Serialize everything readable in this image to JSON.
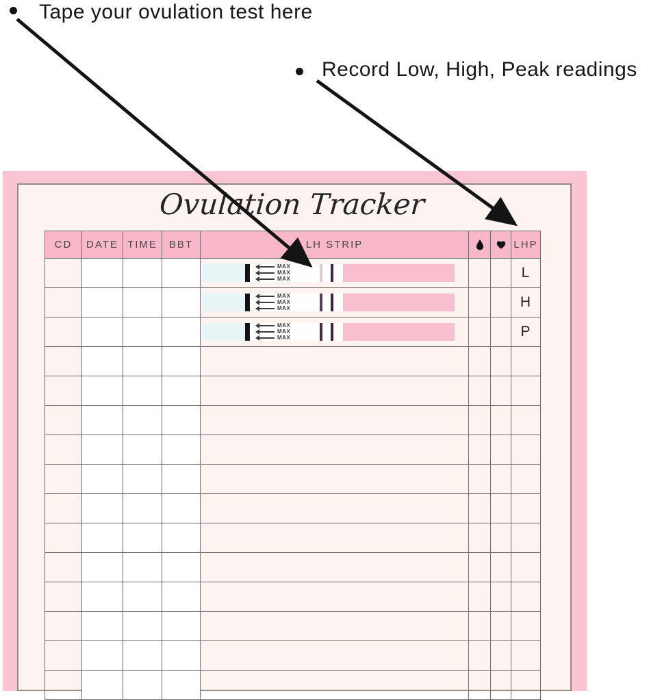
{
  "annotations": [
    {
      "bullet": "•",
      "text": "Tape your ovulation test here"
    },
    {
      "bullet": "•",
      "text": "Record Low, High, Peak readings"
    }
  ],
  "tracker": {
    "title": "Ovulation Tracker",
    "table": {
      "columns": [
        {
          "key": "cd",
          "label": "CD"
        },
        {
          "key": "date",
          "label": "DATE"
        },
        {
          "key": "time",
          "label": "TIME"
        },
        {
          "key": "bbt",
          "label": "BBT"
        },
        {
          "key": "lh",
          "label": "LH STRIP"
        },
        {
          "key": "blood",
          "label": "",
          "icon": "droplet-icon"
        },
        {
          "key": "heart",
          "label": "",
          "icon": "heart-icon"
        },
        {
          "key": "lhp",
          "label": "LHP"
        }
      ],
      "rows": [
        {
          "strip": "low",
          "lhp": "L"
        },
        {
          "strip": "high",
          "lhp": "H"
        },
        {
          "strip": "peak",
          "lhp": "P"
        },
        {},
        {},
        {},
        {},
        {},
        {},
        {},
        {},
        {},
        {},
        {},
        {}
      ]
    },
    "strip": {
      "max_label": "MAX",
      "variants": {
        "low": {
          "line1": "#e0cad3",
          "line2": "#45253f"
        },
        "high": {
          "line1": "#5f3a58",
          "line2": "#40223c"
        },
        "peak": {
          "line1": "#4a2745",
          "line2": "#40223c"
        }
      }
    }
  },
  "colors": {
    "frame_pink": "#f9c5d3",
    "header_pink": "#f9b8ca",
    "card_background": "#fdf4f2",
    "strip_pink": "#f9bfce",
    "strip_blue": "#e9f4f7",
    "grid_line": "#6e6e6e",
    "arrow_black": "#141414"
  }
}
